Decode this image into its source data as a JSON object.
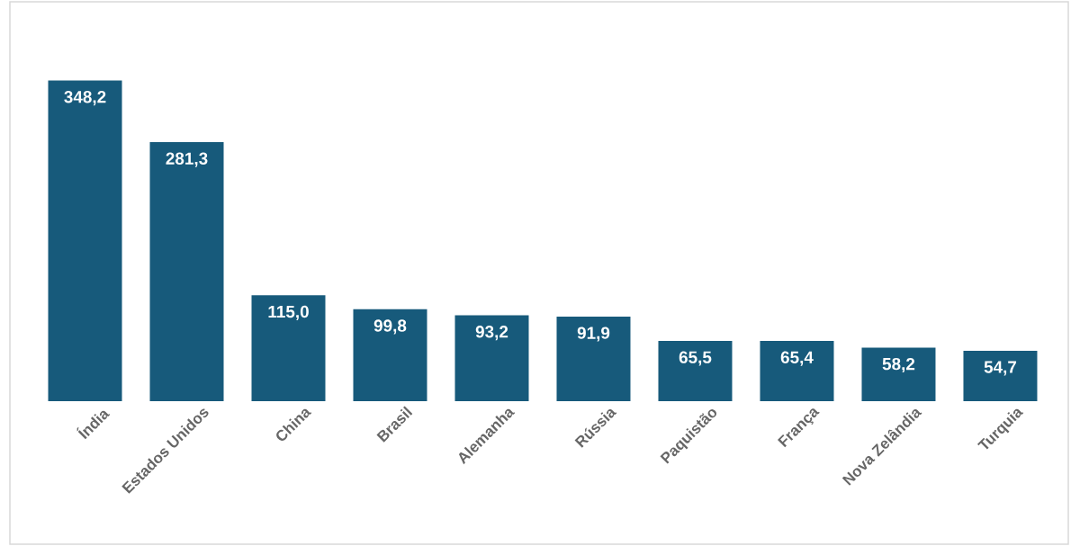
{
  "chart_data": {
    "type": "bar",
    "categories": [
      "Índia",
      "Estados Unidos",
      "China",
      "Brasil",
      "Alemanha",
      "Rússia",
      "Paquistão",
      "França",
      "Nova Zelândia",
      "Turquia"
    ],
    "values": [
      348.2,
      281.3,
      115.0,
      99.8,
      93.2,
      91.9,
      65.5,
      65.4,
      58.2,
      54.7
    ],
    "value_labels": [
      "348,2",
      "281,3",
      "115,0",
      "99,8",
      "93,2",
      "91,9",
      "65,5",
      "65,4",
      "58,2",
      "54,7"
    ],
    "color": "#175a7b"
  }
}
